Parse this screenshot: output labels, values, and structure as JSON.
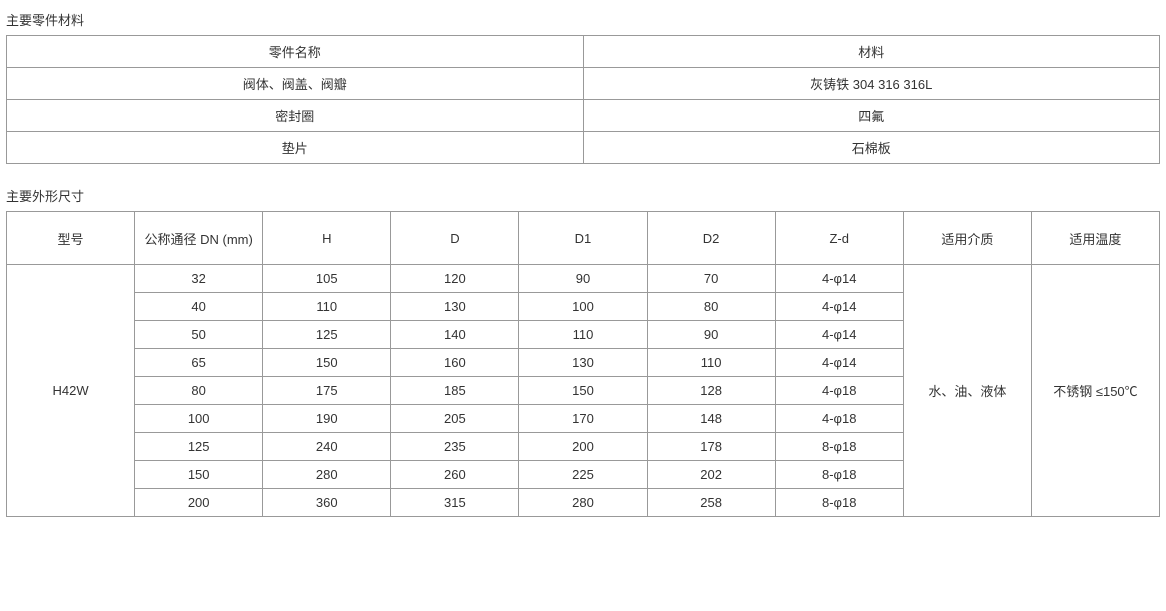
{
  "materials": {
    "title": "主要零件材料",
    "header": {
      "part": "零件名称",
      "material": "材料"
    },
    "rows": [
      {
        "part": "阀体、阀盖、阀瓣",
        "material": "灰铸铁 304 316 316L"
      },
      {
        "part": "密封圈",
        "material": "四氟"
      },
      {
        "part": "垫片",
        "material": "石棉板"
      }
    ]
  },
  "dimensions": {
    "title": "主要外形尺寸",
    "columns": [
      "型号",
      "公称通径 DN (mm)",
      "H",
      "D",
      "D1",
      "D2",
      "Z-d",
      "适用介质",
      "适用温度"
    ],
    "model": "H42W",
    "media": "水、油、液体",
    "temp": "不锈钢 ≤150℃",
    "rows": [
      {
        "dn": "32",
        "h": "105",
        "d": "120",
        "d1": "90",
        "d2": "70",
        "zd": "4-φ14"
      },
      {
        "dn": "40",
        "h": "110",
        "d": "130",
        "d1": "100",
        "d2": "80",
        "zd": "4-φ14"
      },
      {
        "dn": "50",
        "h": "125",
        "d": "140",
        "d1": "110",
        "d2": "90",
        "zd": "4-φ14"
      },
      {
        "dn": "65",
        "h": "150",
        "d": "160",
        "d1": "130",
        "d2": "110",
        "zd": "4-φ14"
      },
      {
        "dn": "80",
        "h": "175",
        "d": "185",
        "d1": "150",
        "d2": "128",
        "zd": "4-φ18"
      },
      {
        "dn": "100",
        "h": "190",
        "d": "205",
        "d1": "170",
        "d2": "148",
        "zd": "4-φ18"
      },
      {
        "dn": "125",
        "h": "240",
        "d": "235",
        "d1": "200",
        "d2": "178",
        "zd": "8-φ18"
      },
      {
        "dn": "150",
        "h": "280",
        "d": "260",
        "d1": "225",
        "d2": "202",
        "zd": "8-φ18"
      },
      {
        "dn": "200",
        "h": "360",
        "d": "315",
        "d1": "280",
        "d2": "258",
        "zd": "8-φ18"
      }
    ]
  },
  "style": {
    "border_color": "#999999",
    "text_color": "#333333",
    "background_color": "#ffffff",
    "font_size_pt": 10,
    "font_family": "Arial / Microsoft YaHei"
  }
}
